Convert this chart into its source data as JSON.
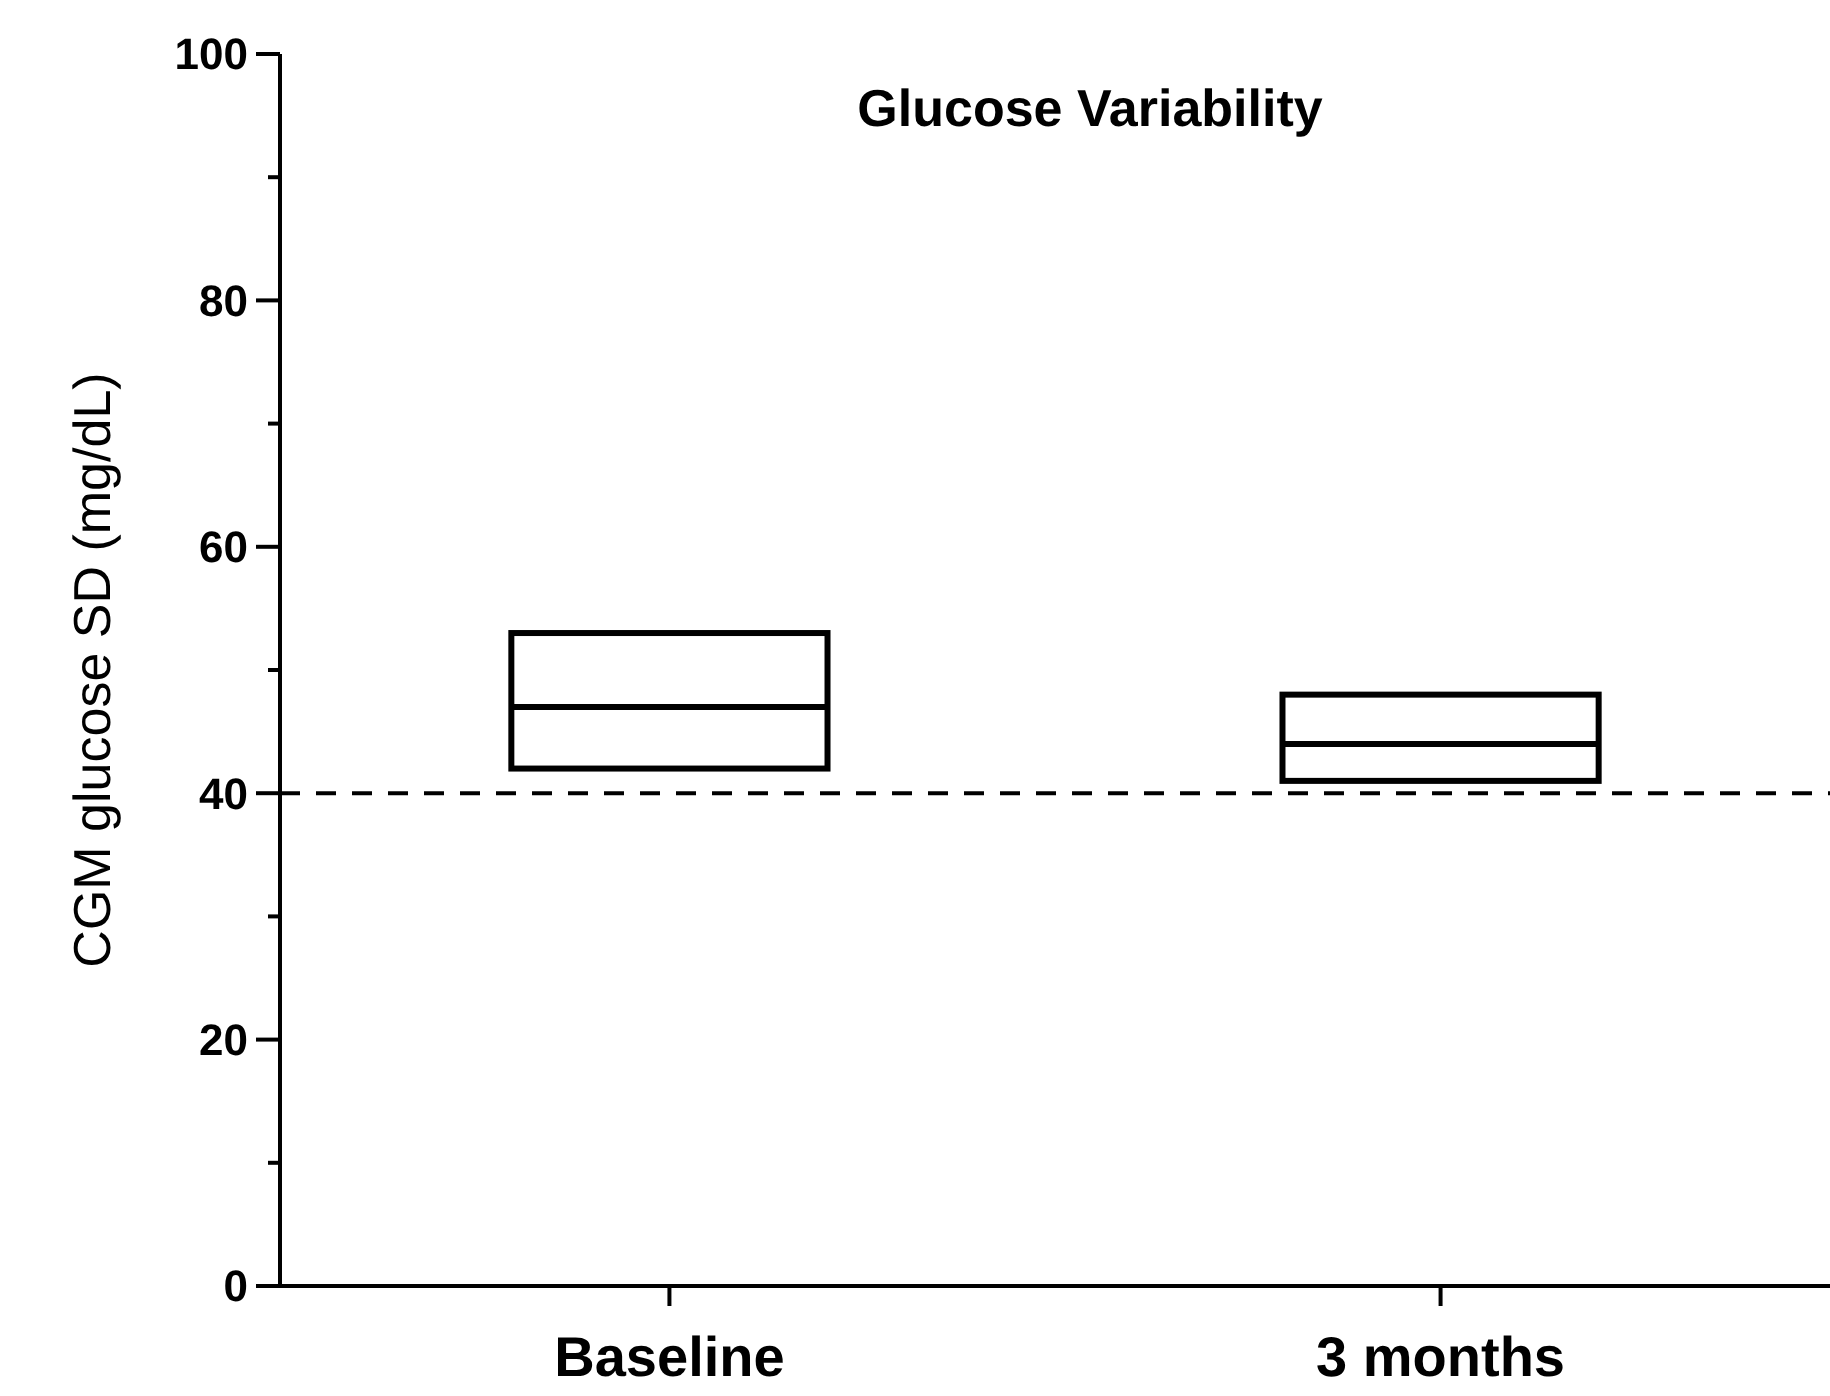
{
  "chart_data": {
    "type": "box",
    "title": "Glucose Variability",
    "ylabel": "CGM glucose SD (mg/dL)",
    "categories": [
      "Baseline",
      "3 months"
    ],
    "boxes": [
      {
        "low": 42,
        "q1": 42,
        "median": 47,
        "q3": 53,
        "high": 53
      },
      {
        "low": 41,
        "q1": 41,
        "median": 44,
        "q3": 48,
        "high": 48
      }
    ],
    "ylim": [
      0,
      100
    ],
    "yticks": [
      0,
      {
        "value": 10,
        "label": null
      },
      20,
      {
        "value": 30,
        "label": null
      },
      40,
      {
        "value": 50,
        "label": null
      },
      60,
      {
        "value": 70,
        "label": null
      },
      80,
      {
        "value": 90,
        "label": null
      },
      100
    ],
    "ref_lines": [
      {
        "axis": "y",
        "value": 40,
        "line_style": "dashed",
        "color": "#000000"
      }
    ]
  }
}
